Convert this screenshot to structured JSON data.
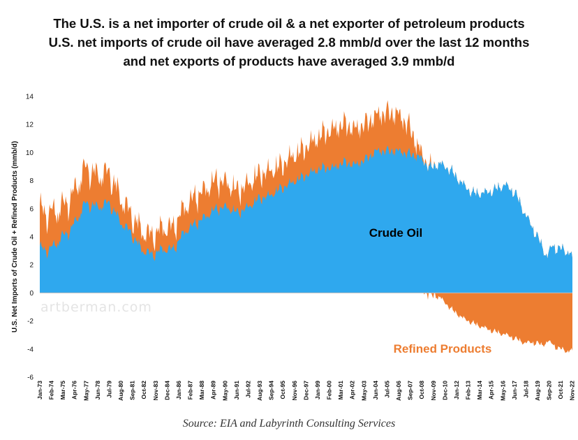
{
  "chart_data": {
    "type": "area",
    "title_lines": [
      "The U.S. is a net importer of crude oil & a net exporter of petroleum products",
      "U.S. net imports of crude oil have averaged 2.8 mmb/d over the last 12 months",
      "and net exports of products have averaged 3.9 mmb/d"
    ],
    "ylabel": "U.S. Net Imports of Crude Oil + Refined Products (mmb/d)",
    "xlabel": "",
    "ylim": [
      -6,
      14
    ],
    "yticks": [
      14,
      12,
      10,
      8,
      6,
      4,
      2,
      0,
      -2,
      -4,
      -6
    ],
    "xlim": [
      "Jan-73",
      "Nov-22"
    ],
    "x_tick_labels": [
      "Jan-73",
      "Feb-74",
      "Mar-75",
      "Apr-76",
      "May-77",
      "Jun-78",
      "Jul-79",
      "Aug-80",
      "Sep-81",
      "Oct-82",
      "Nov-83",
      "Dec-84",
      "Jan-86",
      "Feb-87",
      "Mar-88",
      "Apr-89",
      "May-90",
      "Jun-91",
      "Jul-92",
      "Aug-93",
      "Sep-94",
      "Oct-95",
      "Nov-96",
      "Dec-97",
      "Jan-99",
      "Feb-00",
      "Mar-01",
      "Apr-02",
      "May-03",
      "Jun-04",
      "Jul-05",
      "Aug-06",
      "Sep-07",
      "Oct-08",
      "Nov-09",
      "Dec-10",
      "Jan-12",
      "Feb-13",
      "Mar-14",
      "Apr-15",
      "May-16",
      "Jun-17",
      "Jul-18",
      "Aug-19",
      "Sep-20",
      "Oct-21",
      "Nov-22"
    ],
    "series": [
      {
        "name": "Crude Oil",
        "color": "#2FA8EE",
        "x": [
          1973.0,
          1974.0,
          1975.0,
          1976.0,
          1977.3,
          1978.3,
          1979.5,
          1980.5,
          1981.5,
          1982.5,
          1983.5,
          1984.5,
          1985.5,
          1986.5,
          1987.5,
          1988.5,
          1989.5,
          1990.5,
          1991.5,
          1992.5,
          1993.5,
          1994.5,
          1995.5,
          1996.5,
          1997.5,
          1998.5,
          1999.5,
          2000.5,
          2001.5,
          2002.5,
          2003.5,
          2004.5,
          2005.5,
          2006.5,
          2007.5,
          2008.5,
          2009.5,
          2010.5,
          2011.5,
          2012.5,
          2013.5,
          2014.5,
          2015.5,
          2016.5,
          2017.5,
          2018.0,
          2018.5,
          2019.5,
          2020.0,
          2020.5,
          2021.0,
          2021.5,
          2022.0,
          2022.5,
          2022.85
        ],
        "values": [
          3.0,
          3.0,
          3.8,
          4.5,
          6.3,
          6.0,
          6.3,
          5.0,
          4.2,
          3.0,
          2.6,
          3.0,
          3.0,
          4.2,
          4.8,
          5.3,
          5.9,
          6.0,
          5.6,
          6.0,
          6.6,
          6.8,
          7.3,
          7.7,
          8.1,
          8.5,
          8.8,
          8.8,
          9.2,
          9.0,
          9.4,
          10.0,
          10.0,
          10.0,
          9.8,
          9.6,
          8.8,
          9.1,
          8.6,
          7.7,
          7.0,
          7.0,
          7.2,
          7.6,
          7.0,
          6.2,
          5.4,
          4.0,
          3.2,
          2.5,
          3.3,
          3.0,
          3.0,
          2.8,
          2.3
        ]
      },
      {
        "name": "Refined Products",
        "color": "#ED7D31",
        "x": [
          1973.0,
          1974.0,
          1975.0,
          1976.0,
          1977.3,
          1978.3,
          1979.5,
          1980.5,
          1981.5,
          1982.5,
          1983.5,
          1984.5,
          1985.5,
          1986.5,
          1987.5,
          1988.5,
          1989.5,
          1990.5,
          1991.5,
          1992.5,
          1993.5,
          1994.5,
          1995.5,
          1996.5,
          1997.5,
          1998.5,
          1999.5,
          2000.5,
          2001.5,
          2002.5,
          2003.5,
          2004.5,
          2005.5,
          2006.5,
          2007.5,
          2008.5,
          2009.5,
          2010.5,
          2011.5,
          2012.5,
          2013.5,
          2014.5,
          2015.5,
          2016.5,
          2017.5,
          2018.0,
          2018.5,
          2019.5,
          2020.0,
          2020.5,
          2021.0,
          2021.5,
          2022.0,
          2022.5,
          2022.85
        ],
        "values": [
          2.6,
          2.4,
          2.0,
          2.1,
          2.4,
          2.1,
          2.0,
          1.6,
          1.2,
          1.2,
          1.2,
          1.4,
          1.4,
          1.6,
          1.8,
          1.8,
          1.9,
          1.6,
          1.4,
          1.5,
          1.6,
          1.6,
          1.5,
          1.7,
          1.8,
          2.0,
          2.3,
          2.6,
          2.6,
          2.4,
          2.4,
          2.4,
          2.6,
          2.5,
          1.9,
          0.4,
          -0.2,
          -0.4,
          -1.2,
          -1.8,
          -2.2,
          -2.5,
          -2.8,
          -3.0,
          -3.3,
          -3.5,
          -3.6,
          -3.6,
          -3.8,
          -3.5,
          -3.7,
          -4.0,
          -4.1,
          -4.2,
          -4.2
        ]
      }
    ],
    "annotations": [
      {
        "text": "Crude Oil",
        "x": 2010.5,
        "y": 4.2
      },
      {
        "text": "Refined Products",
        "x": 2014.0,
        "y": -3.9
      }
    ],
    "watermark": "artberman.com",
    "source": "Source: EIA and Labyrinth Consulting Services",
    "grid": false,
    "legend": "none"
  }
}
